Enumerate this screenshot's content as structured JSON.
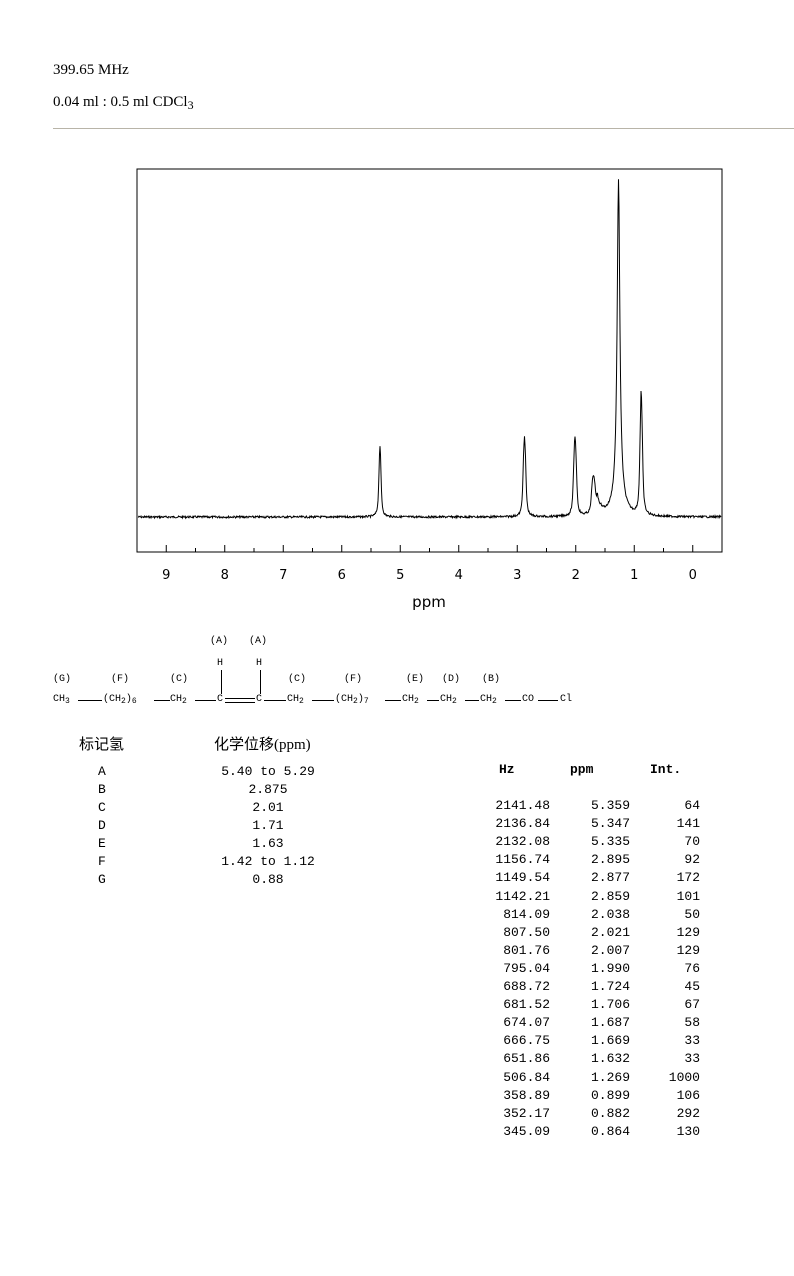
{
  "header": {
    "frequency": "399.65 MHz",
    "sample_prefix": "0.04 ml : 0.5 ml CDCl",
    "sample_subscript": "3"
  },
  "chart_data": {
    "type": "line",
    "title": "",
    "xlabel": "ppm",
    "ylabel": "",
    "xlim": [
      9.5,
      -0.5
    ],
    "reversed_x": true,
    "x_ticks": [
      9,
      8,
      7,
      6,
      5,
      4,
      3,
      2,
      1,
      0
    ],
    "grid": false,
    "peaks": [
      {
        "ppm": 5.359,
        "intensity": 64
      },
      {
        "ppm": 5.347,
        "intensity": 141
      },
      {
        "ppm": 5.335,
        "intensity": 70
      },
      {
        "ppm": 2.895,
        "intensity": 92
      },
      {
        "ppm": 2.877,
        "intensity": 172
      },
      {
        "ppm": 2.859,
        "intensity": 101
      },
      {
        "ppm": 2.038,
        "intensity": 50
      },
      {
        "ppm": 2.021,
        "intensity": 129
      },
      {
        "ppm": 2.007,
        "intensity": 129
      },
      {
        "ppm": 1.99,
        "intensity": 76
      },
      {
        "ppm": 1.724,
        "intensity": 45
      },
      {
        "ppm": 1.706,
        "intensity": 67
      },
      {
        "ppm": 1.687,
        "intensity": 58
      },
      {
        "ppm": 1.669,
        "intensity": 33
      },
      {
        "ppm": 1.632,
        "intensity": 33
      },
      {
        "ppm": 1.269,
        "intensity": 1000
      },
      {
        "ppm": 0.899,
        "intensity": 106
      },
      {
        "ppm": 0.882,
        "intensity": 292
      },
      {
        "ppm": 0.864,
        "intensity": 130
      }
    ]
  },
  "structure": {
    "labels": {
      "A1": "(A)",
      "A2": "(A)",
      "G": "(G)",
      "F1": "(F)",
      "C1": "(C)",
      "C2": "(C)",
      "F2": "(F)",
      "E": "(E)",
      "D": "(D)",
      "B": "(B)"
    },
    "h1": "H",
    "h2": "H",
    "ch3": "CH",
    "ch3_sub": "3",
    "ch2_a": "(CH",
    "ch2_a_sub": "2",
    "ch2_a_close": ")",
    "ch2_a_n": "6",
    "ch2_b": "CH",
    "ch2_b_sub": "2",
    "c1": "C",
    "c2": "C",
    "ch2_c": "CH",
    "ch2_c_sub": "2",
    "ch2_d": "(CH",
    "ch2_d_sub": "2",
    "ch2_d_close": ")",
    "ch2_d_n": "7",
    "ch2_e": "CH",
    "ch2_e_sub": "2",
    "ch2_f": "CH",
    "ch2_f_sub": "2",
    "ch2_g": "CH",
    "ch2_g_sub": "2",
    "co": "CO",
    "cl": "Cl"
  },
  "assignments": {
    "header_label": "标记氢",
    "header_shift": "化学位移(ppm)",
    "rows": [
      {
        "label": "A",
        "shift": "5.40 to 5.29"
      },
      {
        "label": "B",
        "shift": "2.875"
      },
      {
        "label": "C",
        "shift": "2.01"
      },
      {
        "label": "D",
        "shift": "1.71"
      },
      {
        "label": "E",
        "shift": "1.63"
      },
      {
        "label": "F",
        "shift": "1.42 to 1.12"
      },
      {
        "label": "G",
        "shift": "0.88"
      }
    ]
  },
  "peak_table": {
    "headers": {
      "hz": "Hz",
      "ppm": "ppm",
      "int": "Int."
    },
    "rows": [
      {
        "hz": "2141.48",
        "ppm": "5.359",
        "int": "64"
      },
      {
        "hz": "2136.84",
        "ppm": "5.347",
        "int": "141"
      },
      {
        "hz": "2132.08",
        "ppm": "5.335",
        "int": "70"
      },
      {
        "hz": "1156.74",
        "ppm": "2.895",
        "int": "92"
      },
      {
        "hz": "1149.54",
        "ppm": "2.877",
        "int": "172"
      },
      {
        "hz": "1142.21",
        "ppm": "2.859",
        "int": "101"
      },
      {
        "hz": "814.09",
        "ppm": "2.038",
        "int": "50"
      },
      {
        "hz": "807.50",
        "ppm": "2.021",
        "int": "129"
      },
      {
        "hz": "801.76",
        "ppm": "2.007",
        "int": "129"
      },
      {
        "hz": "795.04",
        "ppm": "1.990",
        "int": "76"
      },
      {
        "hz": "688.72",
        "ppm": "1.724",
        "int": "45"
      },
      {
        "hz": "681.52",
        "ppm": "1.706",
        "int": "67"
      },
      {
        "hz": "674.07",
        "ppm": "1.687",
        "int": "58"
      },
      {
        "hz": "666.75",
        "ppm": "1.669",
        "int": "33"
      },
      {
        "hz": "651.86",
        "ppm": "1.632",
        "int": "33"
      },
      {
        "hz": "506.84",
        "ppm": "1.269",
        "int": "1000"
      },
      {
        "hz": "358.89",
        "ppm": "0.899",
        "int": "106"
      },
      {
        "hz": "352.17",
        "ppm": "0.882",
        "int": "292"
      },
      {
        "hz": "345.09",
        "ppm": "0.864",
        "int": "130"
      }
    ]
  }
}
